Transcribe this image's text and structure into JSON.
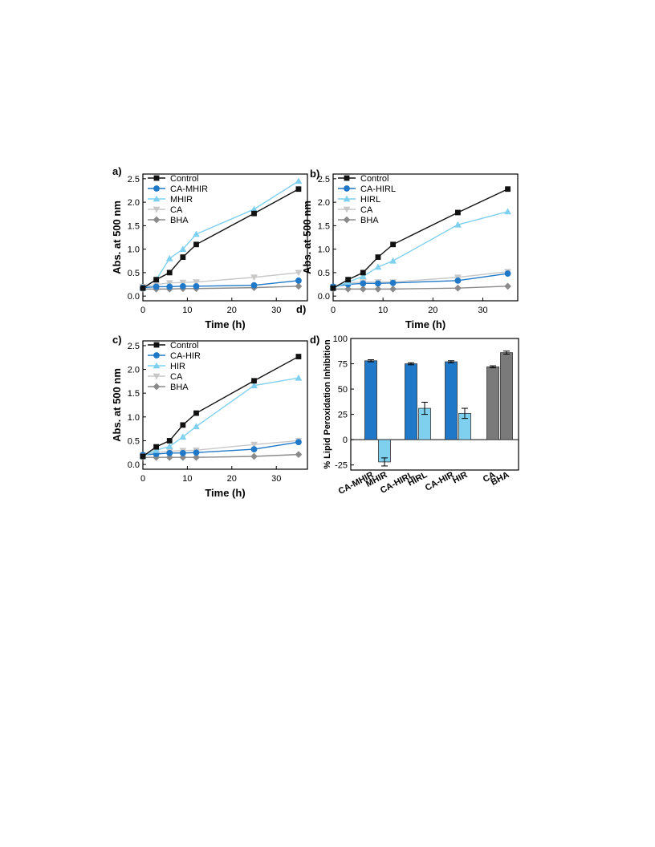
{
  "colors": {
    "control": "#111111",
    "treated": "#1f78c8",
    "compound": "#7fd0ef",
    "ca": "#c8c8c8",
    "bha": "#8a8a8a",
    "bar_dark": "#1f78c8",
    "bar_light": "#7fd0ef",
    "bar_gray": "#7a7a7a"
  },
  "chart_data": [
    {
      "type": "line",
      "panel_label": "a)",
      "xlabel": "Time (h)",
      "ylabel": "Abs. at 500 nm",
      "xlim": [
        0,
        37
      ],
      "ylim": [
        -0.1,
        2.6
      ],
      "xticks": [
        "0",
        "10",
        "20",
        "30"
      ],
      "yticks": [
        "0.0",
        "0.5",
        "1.0",
        "1.5",
        "2.0",
        "2.5"
      ],
      "legend_position": "top-left",
      "series": [
        {
          "name": "Control",
          "marker": "square",
          "color_key": "control",
          "x": [
            0,
            3,
            6,
            9,
            12,
            25,
            35
          ],
          "y": [
            0.17,
            0.35,
            0.5,
            0.83,
            1.1,
            1.76,
            2.28
          ]
        },
        {
          "name": "CA-MHIR",
          "marker": "circle",
          "color_key": "treated",
          "x": [
            0,
            3,
            6,
            9,
            12,
            25,
            35
          ],
          "y": [
            0.18,
            0.2,
            0.2,
            0.21,
            0.21,
            0.23,
            0.33
          ]
        },
        {
          "name": "MHIR",
          "marker": "triangle-up",
          "color_key": "compound",
          "x": [
            0,
            3,
            6,
            9,
            12,
            25,
            35
          ],
          "y": [
            0.17,
            0.35,
            0.8,
            1.0,
            1.32,
            1.85,
            2.45
          ]
        },
        {
          "name": "CA",
          "marker": "triangle-down",
          "color_key": "ca",
          "x": [
            0,
            3,
            6,
            9,
            12,
            25,
            35
          ],
          "y": [
            0.2,
            0.25,
            0.28,
            0.29,
            0.3,
            0.4,
            0.5
          ]
        },
        {
          "name": "BHA",
          "marker": "diamond",
          "color_key": "bha",
          "x": [
            0,
            3,
            6,
            9,
            12,
            25,
            35
          ],
          "y": [
            0.15,
            0.15,
            0.15,
            0.16,
            0.16,
            0.18,
            0.21
          ]
        }
      ]
    },
    {
      "type": "line",
      "panel_label": "b)",
      "xlabel": "Time (h)",
      "ylabel": "Abs. at 500 nm",
      "xlim": [
        0,
        37
      ],
      "ylim": [
        -0.1,
        2.6
      ],
      "xticks": [
        "0",
        "10",
        "20",
        "30"
      ],
      "yticks": [
        "0.0",
        "0.5",
        "1.0",
        "1.5",
        "2.0",
        "2.5"
      ],
      "legend_position": "top-left",
      "series": [
        {
          "name": "Control",
          "marker": "square",
          "color_key": "control",
          "x": [
            0,
            3,
            6,
            9,
            12,
            25,
            35
          ],
          "y": [
            0.17,
            0.35,
            0.5,
            0.83,
            1.1,
            1.78,
            2.28
          ]
        },
        {
          "name": "CA-HIRL",
          "marker": "circle",
          "color_key": "treated",
          "x": [
            0,
            3,
            6,
            9,
            12,
            25,
            35
          ],
          "y": [
            0.2,
            0.25,
            0.27,
            0.27,
            0.28,
            0.33,
            0.48
          ]
        },
        {
          "name": "HIRL",
          "marker": "triangle-up",
          "color_key": "compound",
          "x": [
            0,
            3,
            6,
            9,
            12,
            25,
            35
          ],
          "y": [
            0.17,
            0.3,
            0.42,
            0.62,
            0.75,
            1.52,
            1.8
          ]
        },
        {
          "name": "CA",
          "marker": "triangle-down",
          "color_key": "ca",
          "x": [
            0,
            3,
            6,
            9,
            12,
            25,
            35
          ],
          "y": [
            0.2,
            0.28,
            0.3,
            0.3,
            0.3,
            0.4,
            0.52
          ]
        },
        {
          "name": "BHA",
          "marker": "diamond",
          "color_key": "bha",
          "x": [
            0,
            3,
            6,
            9,
            12,
            25,
            35
          ],
          "y": [
            0.15,
            0.15,
            0.15,
            0.15,
            0.15,
            0.17,
            0.21
          ]
        }
      ]
    },
    {
      "type": "line",
      "panel_label": "c)",
      "xlabel": "Time (h)",
      "ylabel": "Abs. at 500 nm",
      "xlim": [
        0,
        37
      ],
      "ylim": [
        -0.1,
        2.6
      ],
      "xticks": [
        "0",
        "10",
        "20",
        "30"
      ],
      "yticks": [
        "0.0",
        "0.5",
        "1.0",
        "1.5",
        "2.0",
        "2.5"
      ],
      "legend_position": "top-left",
      "series": [
        {
          "name": "Control",
          "marker": "square",
          "color_key": "control",
          "x": [
            0,
            3,
            6,
            9,
            12,
            25,
            35
          ],
          "y": [
            0.17,
            0.37,
            0.5,
            0.83,
            1.08,
            1.76,
            2.27
          ]
        },
        {
          "name": "CA-HIR",
          "marker": "circle",
          "color_key": "treated",
          "x": [
            0,
            3,
            6,
            9,
            12,
            25,
            35
          ],
          "y": [
            0.2,
            0.22,
            0.24,
            0.24,
            0.25,
            0.32,
            0.47
          ]
        },
        {
          "name": "HIR",
          "marker": "triangle-up",
          "color_key": "compound",
          "x": [
            0,
            3,
            6,
            9,
            12,
            25,
            35
          ],
          "y": [
            0.17,
            0.3,
            0.38,
            0.58,
            0.8,
            1.66,
            1.82
          ]
        },
        {
          "name": "CA",
          "marker": "triangle-down",
          "color_key": "ca",
          "x": [
            0,
            3,
            6,
            9,
            12,
            25,
            35
          ],
          "y": [
            0.2,
            0.25,
            0.28,
            0.29,
            0.3,
            0.42,
            0.5
          ]
        },
        {
          "name": "BHA",
          "marker": "diamond",
          "color_key": "bha",
          "x": [
            0,
            3,
            6,
            9,
            12,
            25,
            35
          ],
          "y": [
            0.15,
            0.15,
            0.15,
            0.15,
            0.15,
            0.17,
            0.21
          ]
        }
      ]
    },
    {
      "type": "bar",
      "panel_label": "d)",
      "ylabel": "% Lipid Peroxidation Inhibition",
      "ylim": [
        -30,
        100
      ],
      "yticks": [
        "-25",
        "0",
        "25",
        "50",
        "75",
        "100"
      ],
      "categories": [
        "CA-MHIR",
        "MHIR",
        "CA-HIRL",
        "HIRL",
        "CA-HIR",
        "HIR",
        "CA",
        "BHA"
      ],
      "values": [
        78,
        -22,
        75,
        31,
        77,
        26,
        72,
        86
      ],
      "errors": [
        1,
        4,
        1,
        6,
        1,
        5,
        1,
        1.5
      ],
      "bar_color_keys": [
        "bar_dark",
        "bar_light",
        "bar_dark",
        "bar_light",
        "bar_dark",
        "bar_light",
        "bar_gray",
        "bar_gray"
      ]
    }
  ],
  "stray_label": "d)"
}
